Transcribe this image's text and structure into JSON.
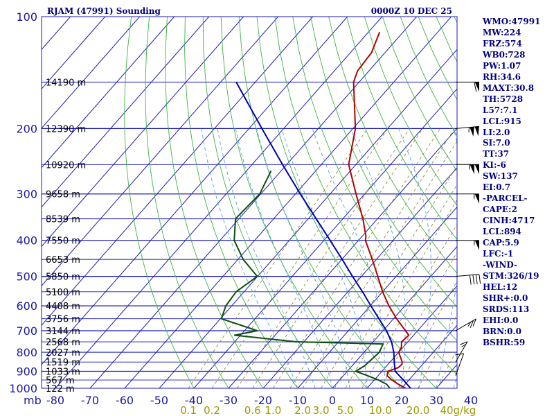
{
  "header": {
    "station": "RJAM (47991) Sounding",
    "time": "0000Z 10 DEC 25"
  },
  "pressure_labels": [
    {
      "p": 100,
      "text": "100"
    },
    {
      "p": 200,
      "text": "200"
    },
    {
      "p": 300,
      "text": "300"
    },
    {
      "p": 400,
      "text": "400"
    },
    {
      "p": 500,
      "text": "500"
    },
    {
      "p": 600,
      "text": "600"
    },
    {
      "p": 700,
      "text": "700"
    },
    {
      "p": 800,
      "text": "800"
    },
    {
      "p": 900,
      "text": "900"
    },
    {
      "p": 1000,
      "text": "1000"
    }
  ],
  "height_labels": [
    {
      "p": 150,
      "text": "14190 m"
    },
    {
      "p": 200,
      "text": "12390 m"
    },
    {
      "p": 250,
      "text": "10920 m"
    },
    {
      "p": 300,
      "text": "9658 m"
    },
    {
      "p": 350,
      "text": "8539 m"
    },
    {
      "p": 400,
      "text": "7550 m"
    },
    {
      "p": 450,
      "text": "6653 m"
    },
    {
      "p": 500,
      "text": "5850 m"
    },
    {
      "p": 550,
      "text": "5100 m"
    },
    {
      "p": 600,
      "text": "4408 m"
    },
    {
      "p": 650,
      "text": "3756 m"
    },
    {
      "p": 700,
      "text": "3144 m"
    },
    {
      "p": 750,
      "text": "2568 m"
    },
    {
      "p": 800,
      "text": "2027 m"
    },
    {
      "p": 850,
      "text": "1519 m"
    },
    {
      "p": 900,
      "text": "1033 m"
    },
    {
      "p": 950,
      "text": "567 m"
    },
    {
      "p": 1000,
      "text": "122 m"
    }
  ],
  "temp_axis": {
    "unit_label": "mb",
    "ticks": [
      {
        "t": -80,
        "text": "-80"
      },
      {
        "t": -70,
        "text": "-70"
      },
      {
        "t": -60,
        "text": "-60"
      },
      {
        "t": -50,
        "text": "-50"
      },
      {
        "t": -40,
        "text": "-40"
      },
      {
        "t": -30,
        "text": "-30"
      },
      {
        "t": -20,
        "text": "-20"
      },
      {
        "t": -10,
        "text": "-10"
      },
      {
        "t": 0,
        "text": "0"
      },
      {
        "t": 10,
        "text": "10"
      },
      {
        "t": 20,
        "text": "20"
      },
      {
        "t": 30,
        "text": "30"
      },
      {
        "t": 40,
        "text": "40"
      }
    ]
  },
  "mixing_ratio_labels": [
    {
      "w": 0.1,
      "text": "0.1"
    },
    {
      "w": 0.2,
      "text": "0.2"
    },
    {
      "w": 0.6,
      "text": "0.6"
    },
    {
      "w": 1.0,
      "text": "1.0"
    },
    {
      "w": 2.0,
      "text": "2.0"
    },
    {
      "w": 3.0,
      "text": "3.0"
    },
    {
      "w": 5.0,
      "text": "5.0"
    },
    {
      "w": 10.0,
      "text": "10.0"
    },
    {
      "w": 20.0,
      "text": "20.0"
    },
    {
      "w": 40.0,
      "text": "40g/kg"
    }
  ],
  "indices": [
    "WMO:47991",
    "MW:224",
    "FRZ:574",
    "WB0:728",
    "PW:1.07",
    "RH:34.6",
    "MAXT:30.8",
    "TH:5728",
    "L57:7.1",
    "LCL:915",
    "LI:2.0",
    "SI:7.0",
    "TT:37",
    "KI:-6",
    "SW:137",
    "EI:0.7",
    "-PARCEL-",
    "CAPE:2",
    "CINH:4717",
    "LCL:894",
    "CAP:5.9",
    "LFC:-1",
    "-WIND-",
    "STM:326/19",
    "HEL:12",
    "SHR+:0.0",
    "SRDS:113",
    "EHI:0.0",
    "BRN:0.0",
    "BSHR:59"
  ],
  "chart_data": {
    "type": "line",
    "title": "RJAM (47991) Sounding",
    "subtitle": "0000Z 10 DEC 25",
    "xlabel": "",
    "ylabel": "",
    "pressure_range_mb": [
      1000,
      100
    ],
    "temperature_range_c": [
      -80,
      40
    ],
    "y_scale": "log",
    "grid": true,
    "colors": {
      "isobar": "#1a1ab4",
      "isotherm": "#1a1ab4",
      "dry_adiabat": "#3cb43c",
      "moist_adiabat": "#1e8c3c",
      "mixing_ratio": "#8a8a3a",
      "temperature": "#b40000",
      "dewpoint": "#0a500a",
      "parcel": "#0000b4",
      "wind": "#000000"
    },
    "series": [
      {
        "key": "temperature",
        "points": [
          {
            "p": 1000,
            "t": 21.2
          },
          {
            "p": 975,
            "t": 18.0
          },
          {
            "p": 950,
            "t": 15.1
          },
          {
            "p": 925,
            "t": 12.6
          },
          {
            "p": 900,
            "t": 11.7
          },
          {
            "p": 880,
            "t": 13.8
          },
          {
            "p": 862,
            "t": 14.0
          },
          {
            "p": 850,
            "t": 13.5
          },
          {
            "p": 800,
            "t": 10.0
          },
          {
            "p": 775,
            "t": 9.5
          },
          {
            "p": 750,
            "t": 8.2
          },
          {
            "p": 720,
            "t": 8.6
          },
          {
            "p": 700,
            "t": 6.5
          },
          {
            "p": 650,
            "t": 0.9
          },
          {
            "p": 600,
            "t": -4.6
          },
          {
            "p": 550,
            "t": -10.0
          },
          {
            "p": 500,
            "t": -15.3
          },
          {
            "p": 450,
            "t": -21.2
          },
          {
            "p": 400,
            "t": -28.0
          },
          {
            "p": 390,
            "t": -28.9
          },
          {
            "p": 350,
            "t": -34.2
          },
          {
            "p": 300,
            "t": -42.5
          },
          {
            "p": 250,
            "t": -52.1
          },
          {
            "p": 200,
            "t": -59.3
          },
          {
            "p": 150,
            "t": -71.6
          },
          {
            "p": 140,
            "t": -73.3
          },
          {
            "p": 125,
            "t": -73.9
          },
          {
            "p": 110,
            "t": -76.8
          }
        ]
      },
      {
        "key": "dewpoint",
        "points": [
          {
            "p": 1000,
            "t": 16.6
          },
          {
            "p": 975,
            "t": 14.6
          },
          {
            "p": 950,
            "t": 11.2
          },
          {
            "p": 925,
            "t": 7.0
          },
          {
            "p": 900,
            "t": 2.4
          },
          {
            "p": 870,
            "t": 3.6
          },
          {
            "p": 800,
            "t": 4.4
          },
          {
            "p": 760,
            "t": 3.4
          },
          {
            "p": 750,
            "t": -22.2
          },
          {
            "p": 720,
            "t": -41.7
          },
          {
            "p": 700,
            "t": -36.3
          },
          {
            "p": 650,
            "t": -49.7
          },
          {
            "p": 600,
            "t": -51.7
          },
          {
            "p": 550,
            "t": -52.3
          },
          {
            "p": 500,
            "t": -50.1
          },
          {
            "p": 450,
            "t": -58.5
          },
          {
            "p": 400,
            "t": -65.9
          },
          {
            "p": 350,
            "t": -71.0
          },
          {
            "p": 300,
            "t": -70.3
          },
          {
            "p": 260,
            "t": -72.9
          }
        ]
      },
      {
        "key": "parcel",
        "points": [
          {
            "p": 1000,
            "t": 22.6
          },
          {
            "p": 950,
            "t": 18.4
          },
          {
            "p": 900,
            "t": 13.8
          },
          {
            "p": 850,
            "t": 11.2
          },
          {
            "p": 800,
            "t": 8.6
          },
          {
            "p": 750,
            "t": 5.3
          },
          {
            "p": 700,
            "t": 1.0
          },
          {
            "p": 650,
            "t": -4.2
          },
          {
            "p": 600,
            "t": -9.8
          },
          {
            "p": 550,
            "t": -15.8
          },
          {
            "p": 500,
            "t": -22.6
          },
          {
            "p": 450,
            "t": -29.9
          },
          {
            "p": 400,
            "t": -38.2
          },
          {
            "p": 350,
            "t": -47.7
          },
          {
            "p": 300,
            "t": -58.6
          },
          {
            "p": 250,
            "t": -71.2
          },
          {
            "p": 200,
            "t": -86.3
          },
          {
            "p": 150,
            "t": -105.5
          }
        ]
      }
    ],
    "wind_barbs": [
      {
        "p": 150,
        "dir": 270,
        "kt": 60
      },
      {
        "p": 200,
        "dir": 275,
        "kt": 105
      },
      {
        "p": 250,
        "dir": 270,
        "kt": 105
      },
      {
        "p": 300,
        "dir": 270,
        "kt": 55
      },
      {
        "p": 400,
        "dir": 270,
        "kt": 55
      },
      {
        "p": 500,
        "dir": 275,
        "kt": 40
      },
      {
        "p": 700,
        "dir": 300,
        "kt": 25
      },
      {
        "p": 850,
        "dir": 330,
        "kt": 15
      },
      {
        "p": 925,
        "dir": 340,
        "kt": 10
      }
    ]
  }
}
